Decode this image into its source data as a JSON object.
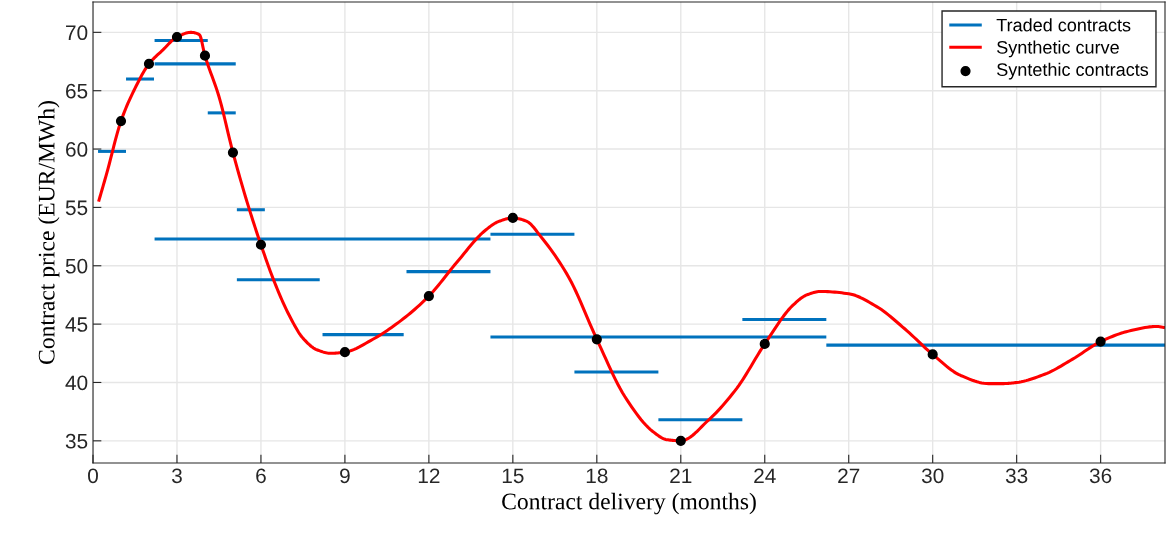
{
  "chart_data": {
    "type": "line",
    "xlabel": "Contract delivery (months)",
    "ylabel": "Contract price (EUR/MWh)",
    "xlim": [
      0,
      38.3
    ],
    "ylim": [
      33.1,
      72.6
    ],
    "xticks": [
      0,
      3,
      6,
      9,
      12,
      15,
      18,
      21,
      24,
      27,
      30,
      33,
      36
    ],
    "yticks": [
      35,
      40,
      45,
      50,
      55,
      60,
      65,
      70
    ],
    "grid": true,
    "legend": "top right",
    "series": [
      {
        "name": "Traded contracts",
        "color": "#0072bd",
        "x": [
          0.18,
          1.18
        ],
        "values": [
          59.8,
          59.8
        ]
      },
      {
        "color": "#0072bd",
        "x": [
          1.18,
          2.18
        ],
        "values": [
          66.0,
          66.0
        ]
      },
      {
        "color": "#0072bd",
        "x": [
          2.2,
          4.1
        ],
        "values": [
          69.3,
          69.3
        ]
      },
      {
        "color": "#0072bd",
        "x": [
          2.2,
          5.1
        ],
        "values": [
          67.3,
          67.3
        ]
      },
      {
        "color": "#0072bd",
        "x": [
          4.1,
          5.1
        ],
        "values": [
          63.1,
          63.1
        ]
      },
      {
        "color": "#0072bd",
        "x": [
          5.14,
          6.14
        ],
        "values": [
          54.8,
          54.8
        ]
      },
      {
        "color": "#0072bd",
        "x": [
          2.2,
          14.2
        ],
        "values": [
          52.3,
          52.3
        ]
      },
      {
        "color": "#0072bd",
        "x": [
          5.14,
          8.1
        ],
        "values": [
          48.8,
          48.8
        ]
      },
      {
        "color": "#0072bd",
        "x": [
          8.2,
          11.1
        ],
        "values": [
          44.1,
          44.1
        ]
      },
      {
        "color": "#0072bd",
        "x": [
          11.2,
          14.2
        ],
        "values": [
          49.5,
          49.5
        ]
      },
      {
        "color": "#0072bd",
        "x": [
          14.2,
          17.2
        ],
        "values": [
          52.7,
          52.7
        ]
      },
      {
        "color": "#0072bd",
        "x": [
          14.2,
          26.2
        ],
        "values": [
          43.9,
          43.9
        ]
      },
      {
        "color": "#0072bd",
        "x": [
          17.2,
          20.2
        ],
        "values": [
          40.9,
          40.9
        ]
      },
      {
        "color": "#0072bd",
        "x": [
          20.2,
          23.2
        ],
        "values": [
          36.8,
          36.8
        ]
      },
      {
        "color": "#0072bd",
        "x": [
          23.2,
          26.2
        ],
        "values": [
          45.4,
          45.4
        ]
      },
      {
        "color": "#0072bd",
        "x": [
          26.2,
          38.3
        ],
        "values": [
          43.2,
          43.2
        ]
      },
      {
        "name": "Synthetic curve",
        "color": "#ff0000",
        "x": [
          0.2,
          0.5,
          1,
          1.5,
          2,
          2.5,
          3,
          3.5,
          3.8,
          4,
          4.5,
          5,
          5.5,
          6,
          6.5,
          7,
          7.5,
          8,
          8.5,
          9,
          10,
          11,
          12,
          13,
          14,
          14.5,
          15,
          15.5,
          16,
          17,
          18,
          19,
          20,
          20.5,
          21,
          22,
          23,
          24,
          25,
          25.5,
          26,
          27,
          28,
          29,
          30,
          31,
          32,
          32.5,
          33,
          34,
          35,
          36,
          37,
          38,
          38.3
        ],
        "values": [
          55.5,
          58.0,
          62.4,
          65.2,
          67.3,
          68.5,
          69.6,
          70.0,
          69.8,
          68.0,
          64.5,
          59.7,
          55.5,
          51.8,
          48.5,
          45.8,
          43.8,
          42.8,
          42.5,
          42.6,
          43.7,
          45.3,
          47.4,
          50.3,
          53.0,
          53.8,
          54.1,
          53.8,
          52.5,
          49.0,
          43.7,
          38.8,
          35.8,
          35.1,
          35.0,
          36.8,
          39.5,
          43.3,
          46.6,
          47.5,
          47.8,
          47.6,
          46.5,
          44.6,
          42.4,
          40.6,
          39.9,
          39.9,
          40.0,
          40.7,
          42.0,
          43.5,
          44.4,
          44.8,
          44.7
        ]
      },
      {
        "name": "Syntethic contracts",
        "type": "scatter",
        "color": "#000000",
        "marker": "circle",
        "x": [
          1,
          2,
          3,
          4,
          5,
          6,
          9,
          12,
          15,
          18,
          21,
          24,
          30,
          36
        ],
        "values": [
          62.4,
          67.3,
          69.6,
          68.0,
          59.7,
          51.8,
          42.6,
          47.4,
          54.1,
          43.7,
          35.0,
          43.3,
          42.4,
          43.5
        ]
      }
    ]
  }
}
